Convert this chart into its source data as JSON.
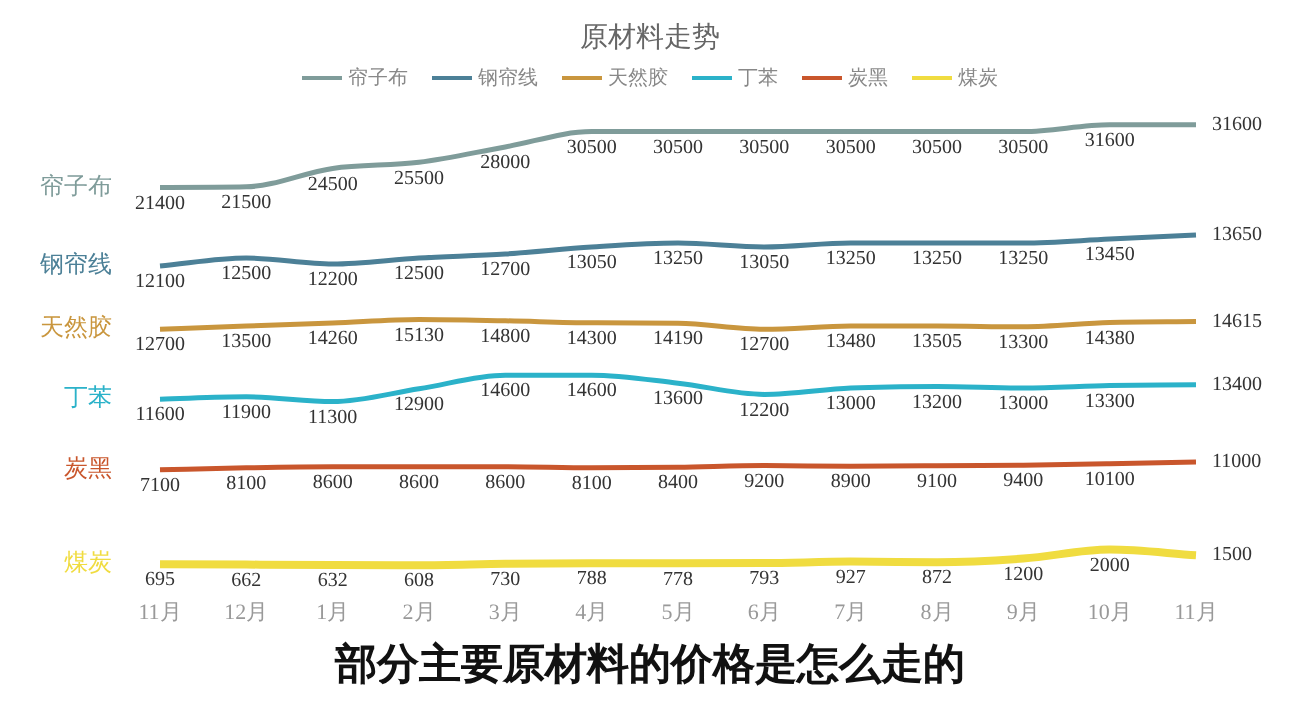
{
  "chart_data": [
    {
      "type": "line",
      "title": "原材料走势",
      "legend": "top",
      "tick_labels": false,
      "data_labels": true,
      "series": [
        {
          "name": "帘子布",
          "color": "#7f9c9a",
          "values": [
            21400,
            21500,
            24500,
            25500,
            28000,
            30500,
            30500,
            30500,
            30500,
            30500,
            30500,
            31600,
            31600
          ]
        }
      ]
    },
    {
      "type": "line",
      "tick_labels": false,
      "data_labels": true,
      "series": [
        {
          "name": "钢帘线",
          "color": "#4c8097",
          "values": [
            12100,
            12500,
            12200,
            12500,
            12700,
            13050,
            13250,
            13050,
            13250,
            13250,
            13250,
            13450,
            13650
          ]
        }
      ]
    },
    {
      "type": "line",
      "tick_labels": false,
      "data_labels": true,
      "series": [
        {
          "name": "天然胶",
          "color": "#c9963e",
          "values": [
            12700,
            13500,
            14260,
            15130,
            14800,
            14300,
            14190,
            12700,
            13480,
            13505,
            13300,
            14380,
            14615
          ]
        }
      ]
    },
    {
      "type": "line",
      "tick_labels": false,
      "data_labels": true,
      "series": [
        {
          "name": "丁苯",
          "color": "#2bb2c9",
          "values": [
            11600,
            11900,
            11300,
            12900,
            14600,
            14600,
            13600,
            12200,
            13000,
            13200,
            13000,
            13300,
            13400
          ]
        }
      ]
    },
    {
      "type": "line",
      "tick_labels": false,
      "data_labels": true,
      "series": [
        {
          "name": "炭黑",
          "color": "#c9562c",
          "values": [
            7100,
            8100,
            8600,
            8600,
            8600,
            8100,
            8400,
            9200,
            8900,
            9100,
            9400,
            10100,
            11000
          ]
        }
      ]
    },
    {
      "type": "line",
      "tick_labels": "x",
      "data_labels": true,
      "categories": [
        "11月",
        "12月",
        "1月",
        "2月",
        "3月",
        "4月",
        "5月",
        "6月",
        "7月",
        "8月",
        "9月",
        "10月",
        "11月"
      ],
      "series": [
        {
          "name": "煤炭",
          "color": "#f0dc40",
          "values": [
            695,
            662,
            632,
            608,
            730,
            788,
            778,
            793,
            927,
            872,
            1200,
            2000,
            1500
          ]
        }
      ],
      "annotations": [
        "部分主要原材料的价格是怎么走的"
      ]
    }
  ]
}
